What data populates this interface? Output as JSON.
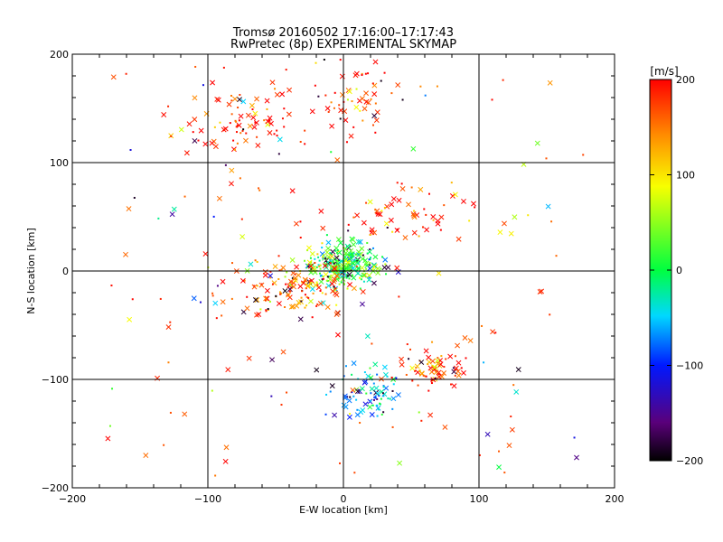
{
  "chart_data": {
    "type": "scatter",
    "title": "Tromsø 20160502 17:16:00–17:17:43",
    "subtitle": "RwPretec (8p) EXPERIMENTAL SKYMAP",
    "xlabel": "E-W location [km]",
    "ylabel": "N-S location [km]",
    "xlim": [
      -200,
      200
    ],
    "ylim": [
      -200,
      200
    ],
    "xticks": [
      "-200",
      "-100",
      "0",
      "100",
      "200"
    ],
    "yticks": [
      "-200",
      "-100",
      "0",
      "100",
      "200"
    ],
    "grid": true,
    "colorbar": {
      "label": "[m/s]",
      "range": [
        -200,
        200
      ],
      "ticks": [
        "200",
        "100",
        "0",
        "-100",
        "-200"
      ],
      "colormap": "rainbow (black-purple-blue-cyan-green-yellow-orange-red)"
    },
    "markers": [
      "x",
      "dot"
    ],
    "clusters": [
      {
        "region": "north-west",
        "center": [
          -75,
          140
        ],
        "spread": [
          40,
          30
        ],
        "velocity": 190,
        "count": 85
      },
      {
        "region": "north",
        "center": [
          10,
          165
        ],
        "spread": [
          25,
          30
        ],
        "velocity": 185,
        "count": 60
      },
      {
        "region": "central",
        "center": [
          0,
          5
        ],
        "spread": [
          22,
          17
        ],
        "velocity": 10,
        "count": 300
      },
      {
        "region": "central-west",
        "center": [
          -35,
          -15
        ],
        "spread": [
          30,
          22
        ],
        "velocity": 160,
        "count": 140
      },
      {
        "region": "south-central",
        "center": [
          20,
          -115
        ],
        "spread": [
          22,
          22
        ],
        "velocity": -60,
        "count": 90
      },
      {
        "region": "south-east",
        "center": [
          65,
          -90
        ],
        "spread": [
          20,
          15
        ],
        "velocity": 180,
        "count": 70
      },
      {
        "region": "north-east",
        "center": [
          40,
          50
        ],
        "spread": [
          50,
          25
        ],
        "velocity": 175,
        "count": 60
      },
      {
        "region": "scattered",
        "center": [
          0,
          0
        ],
        "spread": [
          110,
          110
        ],
        "velocity": 0,
        "count": 150
      }
    ]
  }
}
